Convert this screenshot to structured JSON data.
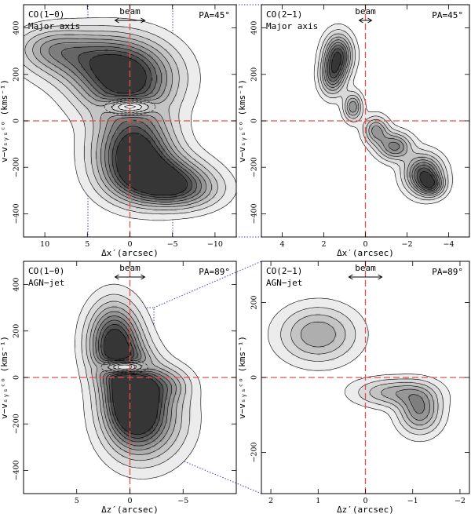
{
  "colors": {
    "axis": "#000000",
    "reference_line": "#e05050",
    "zoom_line": "#3b3bd6",
    "fill_levels": [
      "#ececec",
      "#d9d9d9",
      "#c4c4c4",
      "#aeaeae",
      "#969696",
      "#7e7e7e",
      "#666666",
      "#4e4e4e",
      "#363636"
    ]
  },
  "chart_data": [
    {
      "type": "contour",
      "panel": "top-left",
      "label_line1": "CO(1−0)",
      "label_line2": "Major axis",
      "pa_label": "PA=45°",
      "beam_label": "beam",
      "xlabel": "Δx′(arcsec)",
      "ylabel": "v−vₛᵧₛᶜᵒ (kms⁻¹)",
      "xlim": [
        12.5,
        -12.5
      ],
      "ylim": [
        -500,
        500
      ],
      "x_ticks": [
        10,
        5,
        0,
        -5,
        -10
      ],
      "y_ticks": [
        400,
        200,
        0,
        -200,
        -400
      ],
      "beam_width": 3.5,
      "blobs": [
        {
          "x": 0.5,
          "v": 185,
          "sx": 3.8,
          "sv": 105,
          "rot": -0.45,
          "peak": 1.0
        },
        {
          "x": 6.0,
          "v": 280,
          "sx": 4.0,
          "sv": 75,
          "rot": -0.2,
          "peak": 0.45
        },
        {
          "x": 9.5,
          "v": 320,
          "sx": 2.6,
          "sv": 55,
          "rot": 0,
          "peak": 0.25
        },
        {
          "x": -0.5,
          "v": -130,
          "sx": 3.0,
          "sv": 110,
          "rot": -0.5,
          "peak": 1.0
        },
        {
          "x": -3.5,
          "v": -255,
          "sx": 3.5,
          "sv": 70,
          "rot": -0.2,
          "peak": 0.8
        },
        {
          "x": -6.5,
          "v": -300,
          "sx": 3.0,
          "sv": 55,
          "rot": 0,
          "peak": 0.35
        }
      ],
      "holes": [
        {
          "x": 0,
          "v": 60,
          "rx": 3.0,
          "rv": 35
        }
      ]
    },
    {
      "type": "contour",
      "panel": "top-right",
      "label_line1": "CO(2−1)",
      "label_line2": "Major axis",
      "pa_label": "PA=45°",
      "beam_label": "beam",
      "xlabel": "Δx′(arcsec)",
      "ylabel": "v−vₛᵧₛᶜᵒ (kms⁻¹)",
      "xlim": [
        5,
        -5
      ],
      "ylim": [
        -500,
        500
      ],
      "x_ticks": [
        4,
        2,
        0,
        -2,
        -4
      ],
      "y_ticks": [
        400,
        200,
        0,
        -200,
        -400
      ],
      "beam_width": 0.6,
      "blobs": [
        {
          "x": 1.3,
          "v": 285,
          "sx": 0.45,
          "sv": 60,
          "rot": 0,
          "peak": 0.8
        },
        {
          "x": 1.6,
          "v": 190,
          "sx": 0.4,
          "sv": 55,
          "rot": 0,
          "peak": 0.6
        },
        {
          "x": 0.6,
          "v": 60,
          "sx": 0.3,
          "sv": 40,
          "rot": 0,
          "peak": 0.55
        },
        {
          "x": -0.5,
          "v": -40,
          "sx": 0.4,
          "sv": 40,
          "rot": 0,
          "peak": 0.5
        },
        {
          "x": -1.4,
          "v": -110,
          "sx": 0.55,
          "sv": 40,
          "rot": 0,
          "peak": 0.6
        },
        {
          "x": -2.8,
          "v": -230,
          "sx": 0.6,
          "sv": 55,
          "rot": -0.4,
          "peak": 0.85
        },
        {
          "x": -3.2,
          "v": -280,
          "sx": 0.4,
          "sv": 30,
          "rot": 0,
          "peak": 0.45
        }
      ],
      "holes": []
    },
    {
      "type": "contour",
      "panel": "bottom-left",
      "label_line1": "CO(1−0)",
      "label_line2": "AGN−jet",
      "pa_label": "PA=89°",
      "beam_label": "beam",
      "xlabel": "Δz′(arcsec)",
      "ylabel": "v−vₛᵧₛᶜᵒ (kms⁻¹)",
      "xlim": [
        10,
        -10
      ],
      "ylim": [
        -500,
        500
      ],
      "x_ticks": [
        5,
        0,
        -5
      ],
      "y_ticks": [
        400,
        200,
        0,
        -200,
        -400
      ],
      "beam_width": 2.8,
      "blobs": [
        {
          "x": 1.5,
          "v": 150,
          "sx": 1.6,
          "sv": 110,
          "rot": 0,
          "peak": 0.95
        },
        {
          "x": -0.2,
          "v": -80,
          "sx": 1.7,
          "sv": 120,
          "rot": 0,
          "peak": 1.0
        },
        {
          "x": -1.5,
          "v": -180,
          "sx": 2.5,
          "sv": 120,
          "rot": 0,
          "peak": 0.6
        },
        {
          "x": -3.5,
          "v": -30,
          "sx": 1.5,
          "sv": 50,
          "rot": 0,
          "peak": 0.3
        }
      ],
      "holes": [
        {
          "x": 0.5,
          "v": 45,
          "rx": 2.2,
          "rv": 30
        }
      ]
    },
    {
      "type": "contour",
      "panel": "bottom-right",
      "label_line1": "CO(2−1)",
      "label_line2": "AGN−jet",
      "pa_label": "PA=89°",
      "beam_label": "beam",
      "xlabel": "Δz′(arcsec)",
      "ylabel": "v−vₛᵧₛᶜᵒ (kms⁻¹)",
      "xlim": [
        2.2,
        -2.2
      ],
      "ylim": [
        -310,
        310
      ],
      "x_ticks": [
        2,
        1,
        0,
        -1,
        -2
      ],
      "y_ticks": [
        200,
        0,
        -200
      ],
      "beam_width": 0.7,
      "blobs": [
        {
          "x": 1.0,
          "v": 115,
          "sx": 0.55,
          "sv": 50,
          "rot": 0,
          "peak": 0.45
        },
        {
          "x": -0.6,
          "v": -40,
          "sx": 0.55,
          "sv": 25,
          "rot": 0,
          "peak": 0.4
        },
        {
          "x": -1.15,
          "v": -90,
          "sx": 0.3,
          "sv": 40,
          "rot": 0,
          "peak": 0.55
        }
      ],
      "holes": []
    }
  ]
}
